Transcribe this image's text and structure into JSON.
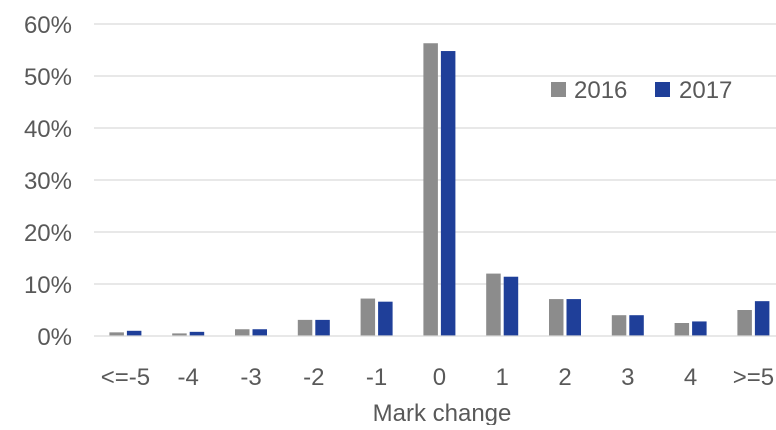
{
  "chart_data": {
    "type": "bar",
    "title": "",
    "xlabel": "Mark change",
    "ylabel": "",
    "categories": [
      "<=-5",
      "-4",
      "-3",
      "-2",
      "-1",
      "0",
      "1",
      "2",
      "3",
      "4",
      ">=5"
    ],
    "series": [
      {
        "name": "2016",
        "color": "#8C8C8C",
        "values": [
          0.7,
          0.5,
          1.3,
          3.1,
          7.2,
          56.3,
          12.0,
          7.1,
          4.0,
          2.5,
          5.0
        ]
      },
      {
        "name": "2017",
        "color": "#1F3F99",
        "values": [
          1.0,
          0.8,
          1.3,
          3.1,
          6.6,
          54.8,
          11.4,
          7.1,
          4.0,
          2.8,
          6.7
        ]
      }
    ],
    "ylim": [
      0,
      60
    ],
    "yticks": [
      "0%",
      "10%",
      "20%",
      "30%",
      "40%",
      "50%",
      "60%"
    ],
    "grid": true,
    "legend_position": "top-right"
  }
}
